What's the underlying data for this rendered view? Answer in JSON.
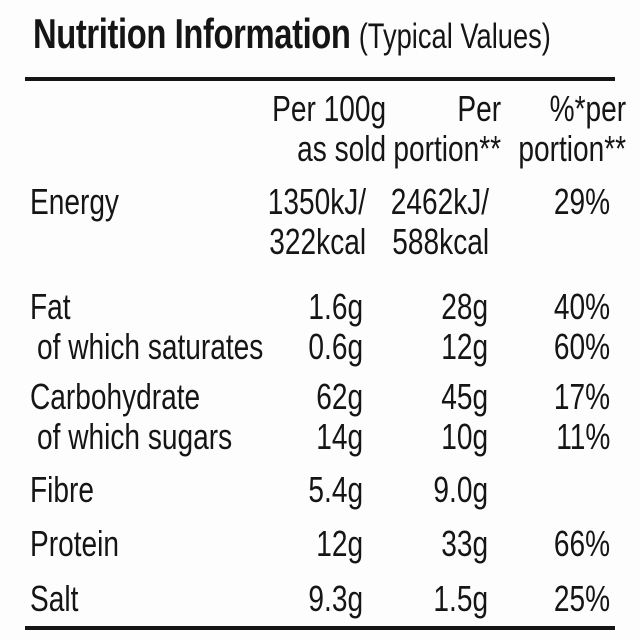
{
  "colors": {
    "text": "#151515",
    "background": "#fdfdfd",
    "rule": "#151515"
  },
  "nutrition_label": {
    "title": "Nutrition Information",
    "title_note": "(Typical Values)",
    "header": {
      "per100_line1": "Per 100g",
      "per100_line2": "as sold",
      "portion_line1": "Per",
      "portion_line2": "portion**",
      "percent_line1": "%*per",
      "percent_line2": "portion**"
    },
    "rows": [
      {
        "name": "Energy",
        "per100_line1": "1350kJ/",
        "per100_line2": "322kcal",
        "portion_line1": "2462kJ/",
        "portion_line2": "588kcal",
        "percent": "29%"
      },
      {
        "name": "Fat",
        "per100": "1.6g",
        "portion": "28g",
        "percent": "40%"
      },
      {
        "name": "of which saturates",
        "per100": "0.6g",
        "portion": "12g",
        "percent": "60%"
      },
      {
        "name": "Carbohydrate",
        "per100": "62g",
        "portion": "45g",
        "percent": "17%"
      },
      {
        "name": "of which sugars",
        "per100": "14g",
        "portion": "10g",
        "percent": "11%"
      },
      {
        "name": "Fibre",
        "per100": "5.4g",
        "portion": "9.0g",
        "percent": ""
      },
      {
        "name": "Protein",
        "per100": "12g",
        "portion": "33g",
        "percent": "66%"
      },
      {
        "name": "Salt",
        "per100": "9.3g",
        "portion": "1.5g",
        "percent": "25%"
      }
    ]
  }
}
